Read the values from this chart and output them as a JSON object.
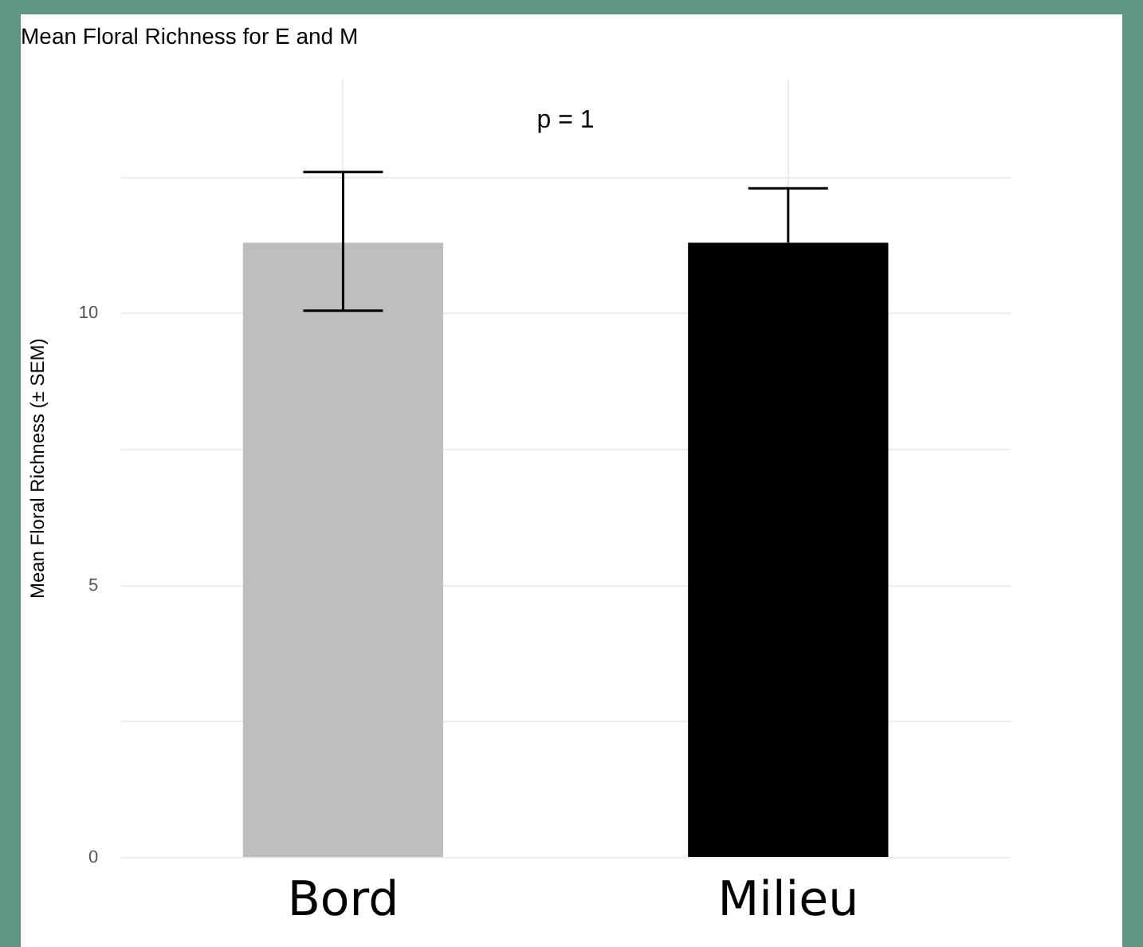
{
  "chart_data": {
    "type": "bar",
    "title": "Mean Floral Richness for E and M",
    "ylabel": "Mean Floral Richness (± SEM)",
    "annotations": [
      "p = 1"
    ],
    "categories": [
      "Bord",
      "Milieu"
    ],
    "values": [
      11.3,
      11.3
    ],
    "colors": [
      "#bebebe",
      "#000000"
    ],
    "errors": [
      [
        10.05,
        12.6
      ],
      [
        11.3,
        12.3
      ]
    ],
    "ylim": [
      0,
      14.3
    ],
    "yticks": [
      0,
      {
        "value": 2.5,
        "label": null
      },
      5,
      {
        "value": 7.5,
        "label": null
      },
      10,
      {
        "value": 12.5,
        "label": null
      }
    ],
    "grid": true
  }
}
